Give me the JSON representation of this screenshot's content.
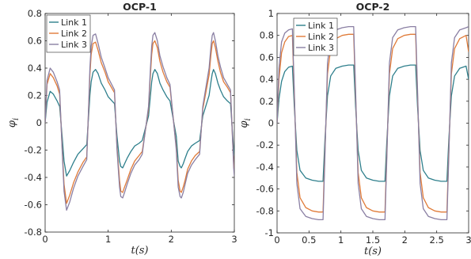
{
  "chart_data": [
    {
      "type": "line",
      "title": "OCP-1",
      "xlabel": "t(s)",
      "ylabel": "φ_i",
      "xlim": [
        0,
        3
      ],
      "ylim": [
        -0.8,
        0.8
      ],
      "xticks": [
        "0",
        "1",
        "2",
        "3"
      ],
      "yticks": [
        "-0.8",
        "-0.6",
        "-0.4",
        "-0.2",
        "0",
        "0.2",
        "0.4",
        "0.6",
        "0.8"
      ],
      "grid": false,
      "legend": "top-left",
      "series": [
        {
          "name": "Link 1",
          "color": "#2e7f8c",
          "x": [
            0,
            0.03,
            0.08,
            0.13,
            0.19,
            0.23,
            0.27,
            0.3,
            0.34,
            0.39,
            0.45,
            0.52,
            0.6,
            0.66,
            0.69,
            0.71,
            0.73,
            0.76,
            0.8,
            0.84,
            0.89,
            0.95,
            1.0,
            1.1,
            1.14,
            1.18,
            1.2,
            1.23,
            1.26,
            1.3,
            1.36,
            1.42,
            1.49,
            1.54,
            1.64,
            1.67,
            1.69,
            1.71,
            1.74,
            1.78,
            1.82,
            1.87,
            1.93,
            1.98,
            2.08,
            2.11,
            2.14,
            2.16,
            2.19,
            2.22,
            2.26,
            2.32,
            2.38,
            2.45,
            2.5,
            2.6,
            2.63,
            2.65,
            2.67,
            2.7,
            2.74,
            2.78,
            2.83,
            2.89,
            2.94,
            2.99,
            3.0
          ],
          "y": [
            0,
            0.15,
            0.23,
            0.21,
            0.16,
            0.12,
            -0.1,
            -0.28,
            -0.39,
            -0.35,
            -0.29,
            -0.23,
            -0.19,
            -0.16,
            0.05,
            0.2,
            0.3,
            0.37,
            0.39,
            0.36,
            0.29,
            0.24,
            0.19,
            0.14,
            -0.1,
            -0.28,
            -0.32,
            -0.33,
            -0.3,
            -0.26,
            -0.21,
            -0.17,
            -0.15,
            -0.13,
            0.05,
            0.2,
            0.3,
            0.36,
            0.39,
            0.36,
            0.29,
            0.24,
            0.19,
            0.16,
            -0.1,
            -0.28,
            -0.32,
            -0.33,
            -0.3,
            -0.26,
            -0.21,
            -0.17,
            -0.15,
            -0.13,
            0.05,
            0.2,
            0.3,
            0.36,
            0.39,
            0.36,
            0.29,
            0.24,
            0.19,
            0.16,
            0.14,
            -0.2,
            -0.24
          ]
        },
        {
          "name": "Link 2",
          "color": "#e07b39",
          "x": [
            0,
            0.03,
            0.08,
            0.13,
            0.19,
            0.23,
            0.27,
            0.3,
            0.34,
            0.39,
            0.45,
            0.52,
            0.6,
            0.66,
            0.69,
            0.71,
            0.73,
            0.76,
            0.8,
            0.84,
            0.89,
            0.95,
            1.0,
            1.1,
            1.14,
            1.18,
            1.2,
            1.23,
            1.26,
            1.3,
            1.36,
            1.42,
            1.49,
            1.54,
            1.64,
            1.67,
            1.69,
            1.71,
            1.74,
            1.78,
            1.82,
            1.87,
            1.93,
            1.98,
            2.08,
            2.11,
            2.14,
            2.16,
            2.19,
            2.22,
            2.26,
            2.32,
            2.38,
            2.45,
            2.5,
            2.6,
            2.63,
            2.65,
            2.67,
            2.7,
            2.74,
            2.78,
            2.83,
            2.89,
            2.94,
            2.99,
            3.0
          ],
          "y": [
            0,
            0.28,
            0.36,
            0.33,
            0.27,
            0.21,
            -0.18,
            -0.45,
            -0.59,
            -0.53,
            -0.44,
            -0.36,
            -0.29,
            -0.25,
            0.1,
            0.35,
            0.5,
            0.58,
            0.59,
            0.53,
            0.44,
            0.37,
            0.3,
            0.22,
            -0.18,
            -0.42,
            -0.5,
            -0.51,
            -0.47,
            -0.42,
            -0.34,
            -0.28,
            -0.24,
            -0.21,
            0.1,
            0.35,
            0.5,
            0.58,
            0.6,
            0.55,
            0.45,
            0.37,
            0.3,
            0.26,
            -0.18,
            -0.42,
            -0.5,
            -0.51,
            -0.47,
            -0.42,
            -0.34,
            -0.28,
            -0.24,
            -0.21,
            0.1,
            0.35,
            0.5,
            0.58,
            0.6,
            0.55,
            0.45,
            0.37,
            0.3,
            0.26,
            0.22,
            -0.3,
            -0.36
          ]
        },
        {
          "name": "Link 3",
          "color": "#8a7fa3",
          "x": [
            0,
            0.03,
            0.08,
            0.13,
            0.19,
            0.23,
            0.27,
            0.3,
            0.34,
            0.39,
            0.45,
            0.52,
            0.6,
            0.66,
            0.69,
            0.71,
            0.73,
            0.76,
            0.8,
            0.84,
            0.89,
            0.95,
            1.0,
            1.1,
            1.14,
            1.18,
            1.2,
            1.23,
            1.26,
            1.3,
            1.36,
            1.42,
            1.49,
            1.54,
            1.64,
            1.67,
            1.69,
            1.71,
            1.74,
            1.78,
            1.82,
            1.87,
            1.93,
            1.98,
            2.08,
            2.11,
            2.14,
            2.16,
            2.19,
            2.22,
            2.26,
            2.32,
            2.38,
            2.45,
            2.5,
            2.6,
            2.63,
            2.65,
            2.67,
            2.7,
            2.74,
            2.78,
            2.83,
            2.89,
            2.94,
            2.99,
            3.0
          ],
          "y": [
            0,
            0.31,
            0.4,
            0.37,
            0.3,
            0.24,
            -0.2,
            -0.5,
            -0.64,
            -0.58,
            -0.48,
            -0.39,
            -0.32,
            -0.27,
            0.12,
            0.4,
            0.56,
            0.64,
            0.65,
            0.58,
            0.48,
            0.4,
            0.33,
            0.24,
            -0.2,
            -0.47,
            -0.54,
            -0.55,
            -0.51,
            -0.45,
            -0.37,
            -0.31,
            -0.27,
            -0.23,
            0.12,
            0.4,
            0.56,
            0.64,
            0.66,
            0.6,
            0.49,
            0.41,
            0.33,
            0.28,
            -0.2,
            -0.47,
            -0.54,
            -0.55,
            -0.51,
            -0.45,
            -0.37,
            -0.31,
            -0.27,
            -0.23,
            0.12,
            0.4,
            0.56,
            0.64,
            0.66,
            0.6,
            0.49,
            0.41,
            0.33,
            0.28,
            0.24,
            -0.33,
            -0.39
          ]
        }
      ]
    },
    {
      "type": "line",
      "title": "OCP-2",
      "xlabel": "t(s)",
      "ylabel": "φ_i",
      "xlim": [
        0,
        3
      ],
      "ylim": [
        -1,
        1
      ],
      "xticks": [
        "0",
        "0.5",
        "1",
        "1.5",
        "2",
        "2.5",
        "3"
      ],
      "yticks": [
        "-1",
        "-0.8",
        "-0.6",
        "-0.4",
        "-0.2",
        "0",
        "0.2",
        "0.4",
        "0.6",
        "0.8",
        "1"
      ],
      "grid": false,
      "legend": "top-left",
      "series": [
        {
          "name": "Link 1",
          "color": "#2e7f8c",
          "x": [
            0,
            0.03,
            0.07,
            0.12,
            0.18,
            0.24,
            0.27,
            0.31,
            0.36,
            0.45,
            0.55,
            0.65,
            0.72,
            0.75,
            0.79,
            0.84,
            0.92,
            1.02,
            1.12,
            1.2,
            1.23,
            1.27,
            1.32,
            1.4,
            1.5,
            1.6,
            1.69,
            1.72,
            1.76,
            1.81,
            1.89,
            1.99,
            2.09,
            2.17,
            2.2,
            2.24,
            2.29,
            2.37,
            2.47,
            2.57,
            2.66,
            2.69,
            2.73,
            2.78,
            2.86,
            2.96,
            3.0
          ],
          "y": [
            0,
            0.22,
            0.38,
            0.47,
            0.51,
            0.52,
            0.15,
            -0.25,
            -0.43,
            -0.5,
            -0.52,
            -0.53,
            -0.53,
            -0.15,
            0.25,
            0.43,
            0.5,
            0.52,
            0.53,
            0.53,
            0.15,
            -0.25,
            -0.43,
            -0.5,
            -0.52,
            -0.53,
            -0.53,
            -0.15,
            0.25,
            0.43,
            0.5,
            0.52,
            0.53,
            0.53,
            0.15,
            -0.25,
            -0.43,
            -0.5,
            -0.52,
            -0.53,
            -0.53,
            -0.15,
            0.25,
            0.43,
            0.5,
            0.52,
            0.4
          ]
        },
        {
          "name": "Link 2",
          "color": "#e07b39",
          "x": [
            0,
            0.03,
            0.07,
            0.12,
            0.18,
            0.24,
            0.27,
            0.31,
            0.36,
            0.45,
            0.55,
            0.65,
            0.72,
            0.75,
            0.79,
            0.84,
            0.92,
            1.02,
            1.12,
            1.2,
            1.23,
            1.27,
            1.32,
            1.4,
            1.5,
            1.6,
            1.69,
            1.72,
            1.76,
            1.81,
            1.89,
            1.99,
            2.09,
            2.17,
            2.2,
            2.24,
            2.29,
            2.37,
            2.47,
            2.57,
            2.66,
            2.69,
            2.73,
            2.78,
            2.86,
            2.96,
            3.0
          ],
          "y": [
            0,
            0.4,
            0.64,
            0.74,
            0.79,
            0.8,
            0.25,
            -0.45,
            -0.68,
            -0.77,
            -0.8,
            -0.81,
            -0.81,
            -0.25,
            0.45,
            0.68,
            0.77,
            0.8,
            0.81,
            0.81,
            0.25,
            -0.45,
            -0.68,
            -0.77,
            -0.8,
            -0.81,
            -0.81,
            -0.25,
            0.45,
            0.68,
            0.77,
            0.8,
            0.81,
            0.81,
            0.25,
            -0.45,
            -0.68,
            -0.77,
            -0.8,
            -0.81,
            -0.81,
            -0.25,
            0.45,
            0.68,
            0.77,
            0.8,
            0.65
          ]
        },
        {
          "name": "Link 3",
          "color": "#8a7fa3",
          "x": [
            0,
            0.03,
            0.07,
            0.12,
            0.18,
            0.24,
            0.27,
            0.31,
            0.36,
            0.45,
            0.55,
            0.65,
            0.72,
            0.75,
            0.79,
            0.84,
            0.92,
            1.02,
            1.12,
            1.2,
            1.23,
            1.27,
            1.32,
            1.4,
            1.5,
            1.6,
            1.69,
            1.72,
            1.76,
            1.81,
            1.89,
            1.99,
            2.09,
            2.17,
            2.2,
            2.24,
            2.29,
            2.37,
            2.47,
            2.57,
            2.66,
            2.69,
            2.73,
            2.78,
            2.86,
            2.96,
            3.0
          ],
          "y": [
            0,
            0.5,
            0.74,
            0.82,
            0.85,
            0.86,
            0.3,
            -0.55,
            -0.78,
            -0.85,
            -0.87,
            -0.88,
            -0.88,
            -0.3,
            0.55,
            0.78,
            0.85,
            0.87,
            0.88,
            0.88,
            0.3,
            -0.55,
            -0.78,
            -0.85,
            -0.87,
            -0.88,
            -0.88,
            -0.3,
            0.55,
            0.78,
            0.85,
            0.87,
            0.88,
            0.88,
            0.3,
            -0.55,
            -0.78,
            -0.85,
            -0.87,
            -0.88,
            -0.88,
            -0.3,
            0.55,
            0.78,
            0.85,
            0.87,
            0.88
          ]
        }
      ]
    }
  ]
}
